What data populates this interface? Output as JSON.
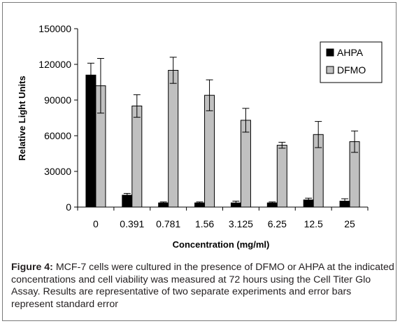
{
  "chart_data": {
    "type": "bar",
    "categories": [
      "0",
      "0.391",
      "0.781",
      "1.56",
      "3.125",
      "6.25",
      "12.5",
      "25"
    ],
    "series": [
      {
        "name": "AHPA",
        "color": "#000000",
        "values": [
          111000,
          10000,
          3500,
          3500,
          3500,
          3500,
          6000,
          5000
        ],
        "errors": [
          10000,
          1500,
          800,
          800,
          1500,
          800,
          1500,
          2000
        ]
      },
      {
        "name": "DFMO",
        "color": "#c0c0c0",
        "values": [
          102000,
          85000,
          115000,
          94000,
          73000,
          52000,
          61000,
          55000
        ],
        "errors": [
          23000,
          9500,
          11000,
          13000,
          10000,
          2500,
          11000,
          9000
        ]
      }
    ],
    "xlabel": "Concentration (mg/ml)",
    "ylabel": "Relative Light Units",
    "ylim": [
      0,
      150000
    ],
    "yticks": [
      "0",
      "30000",
      "60000",
      "90000",
      "120000",
      "150000"
    ],
    "ytick_values": [
      0,
      30000,
      60000,
      90000,
      120000,
      150000
    ],
    "grid": false,
    "legend_position": "top-right"
  },
  "caption": {
    "label": "Figure 4:",
    "text": " MCF-7 cells were cultured in the presence of DFMO or AHPA at the indicated concentrations and cell viability was measured at 72 hours using the Cell Titer Glo Assay. Results are representative of two separate experiments and error bars represent standard error"
  }
}
